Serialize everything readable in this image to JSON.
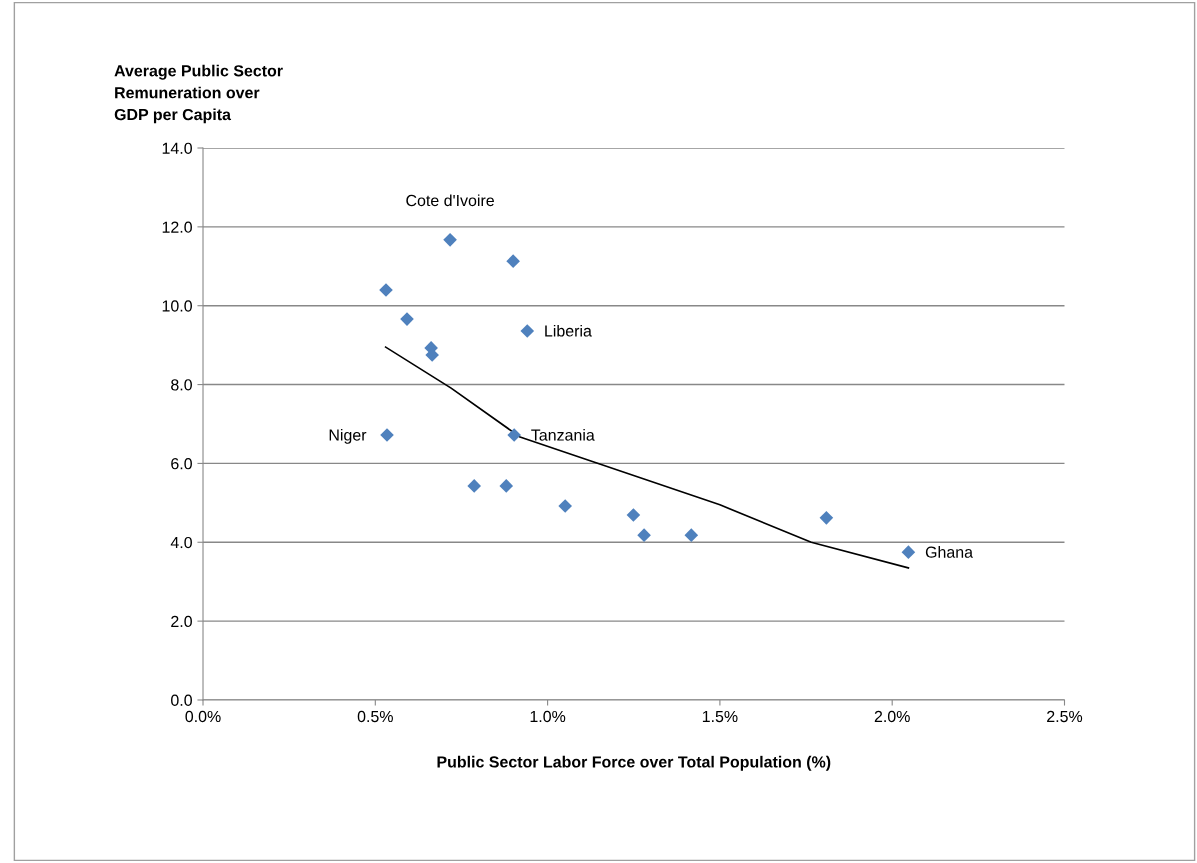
{
  "chart_data": {
    "type": "scatter",
    "ylabel": "Average Public Sector\nRemuneration over\nGDP per Capita",
    "xlabel": "Public Sector Labor Force over Total Population (%)",
    "xlim": [
      0,
      2.5
    ],
    "xticks": [
      {
        "value": 0,
        "label": "0.0%"
      },
      {
        "value": 0.5,
        "label": "0.5%"
      },
      {
        "value": 1.0,
        "label": "1.0%"
      },
      {
        "value": 1.5,
        "label": "1.5%"
      },
      {
        "value": 2.0,
        "label": "2.0%"
      },
      {
        "value": 2.5,
        "label": "2.5%"
      }
    ],
    "ylim": [
      0,
      14
    ],
    "yticks": [
      {
        "value": 0,
        "label": "0.0"
      },
      {
        "value": 2,
        "label": "2.0"
      },
      {
        "value": 4,
        "label": "4.0"
      },
      {
        "value": 6,
        "label": "6.0"
      },
      {
        "value": 8,
        "label": "8.0"
      },
      {
        "value": 10,
        "label": "10.0"
      },
      {
        "value": 12,
        "label": "12.0"
      },
      {
        "value": 14,
        "label": "14.0"
      }
    ],
    "grid": "y",
    "marker": "diamond",
    "legend": false,
    "series": [
      {
        "color": "#4f81bd",
        "x": [
          0.531,
          0.717,
          0.9,
          0.592,
          0.941,
          0.662,
          0.665,
          0.534,
          0.903,
          0.787,
          0.88,
          1.051,
          1.249,
          1.28,
          1.417,
          1.809,
          2.047
        ],
        "values": [
          10.4,
          11.67,
          11.13,
          9.66,
          9.36,
          8.93,
          8.75,
          6.72,
          6.72,
          5.43,
          5.43,
          4.92,
          4.69,
          4.18,
          4.18,
          4.62,
          3.75
        ]
      },
      {
        "type": "line",
        "color": "#000000",
        "marker": "none",
        "x": [
          0.53,
          0.72,
          0.92,
          1.147,
          1.5,
          1.765,
          2.047
        ],
        "values": [
          8.95,
          7.91,
          6.67,
          6.0,
          4.95,
          4.0,
          3.35
        ]
      }
    ],
    "annotations": [
      {
        "text": "Cote d'Ivoire",
        "x": 0.717,
        "y": 11.67
      },
      {
        "text": "Liberia",
        "x": 0.941,
        "y": 9.36
      },
      {
        "text": "Niger",
        "x": 0.531,
        "y": 6.72
      },
      {
        "text": "Tanzania",
        "x": 0.903,
        "y": 6.72
      },
      {
        "text": "Ghana",
        "x": 2.047,
        "y": 3.75
      }
    ]
  }
}
